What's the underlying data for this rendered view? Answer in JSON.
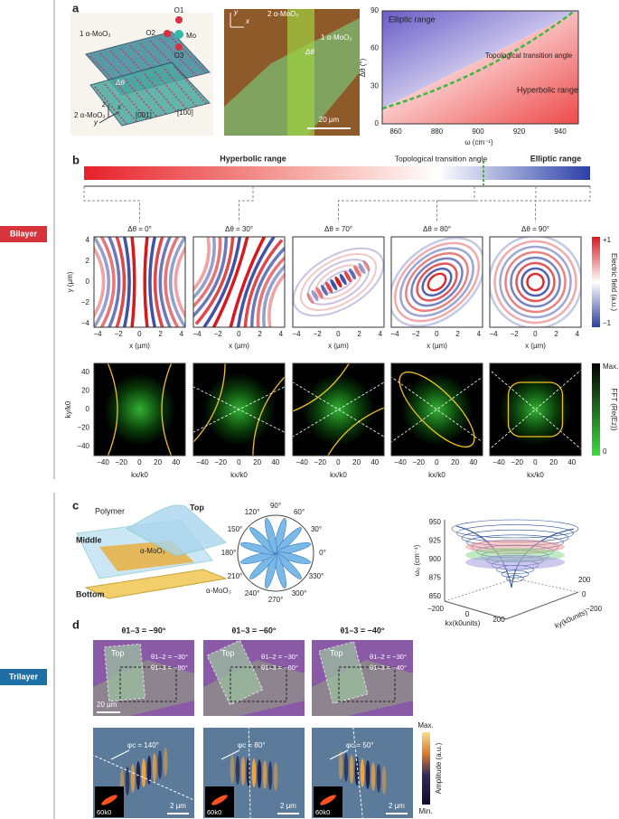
{
  "side_labels": {
    "bilayer": "Bilayer",
    "trilayer": "Trilayer"
  },
  "a": {
    "label": "a",
    "schematic": {
      "layer1": "1 α-MoO₃",
      "layer2": "2 α-MoO₃",
      "o1": "O1",
      "o2": "O2",
      "mo": "Mo",
      "o3": "O3",
      "angle": "Δθ",
      "dir1": "[100]",
      "dir2": "[001]",
      "axis_z": "z",
      "axis_x": "x",
      "axis_y": "y"
    },
    "micrograph": {
      "layer2": "2 α-MoO₃",
      "layer1": "1 α-MoO₃",
      "angle": "Δθ",
      "axis_y": "y",
      "axis_x": "x",
      "scale": "20 µm"
    },
    "plot": {
      "ylabel": "Δθ (°)",
      "yticks": [
        "0",
        "30",
        "60",
        "90"
      ],
      "xlabel": "ω (cm⁻¹)",
      "xticks": [
        "860",
        "880",
        "900",
        "920",
        "940"
      ],
      "elliptic": "Elliptic range",
      "transition": "Topological transition angle",
      "hyperbolic": "Hyperbolic range"
    }
  },
  "b": {
    "label": "b",
    "bar": {
      "hyperbolic": "Hyperbolic range",
      "transition": "Topological transition angle",
      "elliptic": "Elliptic range"
    },
    "titles": [
      "Δθ = 0°",
      "Δθ = 30°",
      "Δθ = 70°",
      "Δθ = 80°",
      "Δθ = 90°"
    ],
    "field": {
      "ylabel": "y (µm)",
      "yticks": [
        "4",
        "2",
        "0",
        "−2",
        "−4"
      ],
      "xlabel": "x (µm)",
      "xticks": [
        "−4",
        "−2",
        "0",
        "2",
        "4"
      ],
      "cmax": "+1",
      "cmin": "−1",
      "clabel": "Electric field (a.u.)"
    },
    "fft": {
      "ylabel": "ky/k0",
      "yticks": [
        "40",
        "20",
        "0",
        "−20",
        "−40"
      ],
      "xlabel": "kx/k0",
      "xticks": [
        "−40",
        "−20",
        "0",
        "20",
        "40"
      ],
      "cmax": "Max.",
      "cmin": "0",
      "clabel": "FFT (Re(Ez))"
    }
  },
  "c": {
    "label": "c",
    "schematic": {
      "polymer": "Polymer",
      "top": "Top",
      "middle": "Middle",
      "material_middle": "α-MoO₃",
      "bottom": "Bottom",
      "material_bottom": "α-MoO₃"
    },
    "polar_angles": [
      "90°",
      "60°",
      "30°",
      "0°",
      "330°",
      "300°",
      "270°",
      "240°",
      "210°",
      "180°",
      "150°",
      "120°"
    ],
    "plot3d": {
      "zlabel": "ω₀ (cm⁻¹)",
      "zticks": [
        "950",
        "925",
        "900",
        "875",
        "850"
      ],
      "xlabel": "kx(k0units)",
      "xticks": [
        "−200",
        "0",
        "200"
      ],
      "ylabel": "ky(k0units)",
      "yticks": [
        "200",
        "0",
        "−200"
      ]
    }
  },
  "d": {
    "label": "d",
    "columns": [
      {
        "title": "θ1–3 = −90°",
        "top": "Top",
        "theta12": "θ1–2 = −30°",
        "theta13": "θ1–3 = −90°",
        "scale_top": "20 µm",
        "phi": "φc = 140°",
        "scale_bottom": "2 µm",
        "inset": "60k0"
      },
      {
        "title": "θ1–3 = −60°",
        "top": "Top",
        "theta12": "θ1–2 = −30°",
        "theta13": "θ1–3 = −60°",
        "phi": "φc = 80°",
        "scale_bottom": "2 µm",
        "inset": "60k0"
      },
      {
        "title": "θ1–3 = −40°",
        "top": "Top",
        "theta12": "θ1–2 = −30°",
        "theta13": "θ1–3 = −40°",
        "phi": "φc = 50°",
        "scale_bottom": "2 µm",
        "inset": "60k0"
      }
    ],
    "colorbar": {
      "max": "Max.",
      "label": "Amplitude (a.u.)",
      "min": "Min."
    }
  }
}
